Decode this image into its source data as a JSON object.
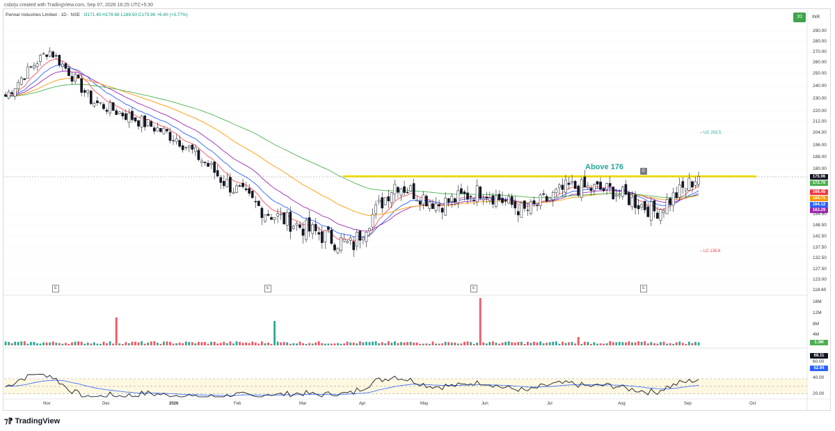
{
  "header": {
    "created_by": "csbirju created with TradingView.com, Sep 07, 2026 16:25 UTC+5:30"
  },
  "symbol": {
    "name": "Pennar Industries Limited · 1D · NSE",
    "ohlc": "O171.40  H178.68  L169.50  C175.96  +6.40 (+3.77%)"
  },
  "toolbar": {
    "interval": "20",
    "currency": "INR"
  },
  "annotation": {
    "text": "Above 176",
    "badge": "E"
  },
  "hints": {
    "upper": "UC 203.5",
    "lower": "LC 135.6"
  },
  "brand": {
    "logo_text": "TradingView"
  },
  "colors": {
    "up": "#089981",
    "down": "#f23645",
    "ema_red": "#f7525f",
    "ema_blue": "#2962ff",
    "ema_purple": "#9c27b0",
    "ema_orange": "#ff9800",
    "ema_green": "#4caf50",
    "level_line": "#f5e000",
    "rsi": "#131722",
    "rsi_ma": "#2962ff"
  },
  "price_axis": {
    "ticks": [
      "290.00",
      "280.00",
      "270.00",
      "260.00",
      "250.00",
      "240.00",
      "230.00",
      "220.00",
      "212.00",
      "204.00",
      "196.00",
      "188.00",
      "180.00",
      "154.50",
      "148.50",
      "142.50",
      "137.50",
      "132.50",
      "127.50",
      "123.00",
      "118.60"
    ],
    "labels": [
      {
        "text": "175.96",
        "color": "#131722"
      },
      {
        "text": "172.76",
        "color": "#4caf50"
      },
      {
        "text": "166.45",
        "color": "#f23645"
      },
      {
        "text": "164.71",
        "color": "#ff9800"
      },
      {
        "text": "164.12",
        "color": "#2962ff"
      },
      {
        "text": "163.29",
        "color": "#9c27b0"
      }
    ]
  },
  "volume_axis": {
    "ticks": [
      "16M",
      "12M",
      "8M",
      "4M"
    ],
    "label": "1.3M"
  },
  "rsi_axis": {
    "ticks": [
      "60.00",
      "40.00",
      "20.00"
    ],
    "labels": [
      "68.11",
      "52.94"
    ]
  },
  "time_axis": {
    "labels": [
      "Nov",
      "Dec",
      "2026",
      "Feb",
      "Mar",
      "Apr",
      "May",
      "Jun",
      "Jul",
      "Aug",
      "Sep",
      "Oct"
    ]
  },
  "events": [
    "E",
    "E",
    "E",
    "E"
  ],
  "chart_data": {
    "type": "candlestick",
    "x": [
      "Oct",
      "Nov",
      "Dec",
      "2026",
      "Feb",
      "Mar",
      "Apr",
      "May",
      "Jun",
      "Jul",
      "Aug",
      "Sep"
    ],
    "close_path": [
      232,
      272,
      228,
      214,
      200,
      174,
      156,
      146,
      138,
      172,
      160,
      168,
      156,
      170,
      168,
      156,
      176
    ],
    "levels": {
      "resistance": 176,
      "upper_circuit": 203.5,
      "lower_circuit": 135.6
    },
    "last": {
      "open": 171.4,
      "high": 178.68,
      "low": 169.5,
      "close": 175.96,
      "change": 6.4,
      "change_pct": 3.77
    },
    "emas": [
      {
        "name": "",
        "value": 172.76
      },
      {
        "name": "",
        "value": 166.45
      },
      {
        "name": "",
        "value": 164.71
      },
      {
        "name": "",
        "value": 164.12
      },
      {
        "name": "",
        "value": 163.29
      }
    ],
    "volume_latest": "1.3M",
    "rsi": {
      "value": 68.11,
      "ma": 52.94,
      "bands": [
        70,
        30
      ]
    }
  }
}
